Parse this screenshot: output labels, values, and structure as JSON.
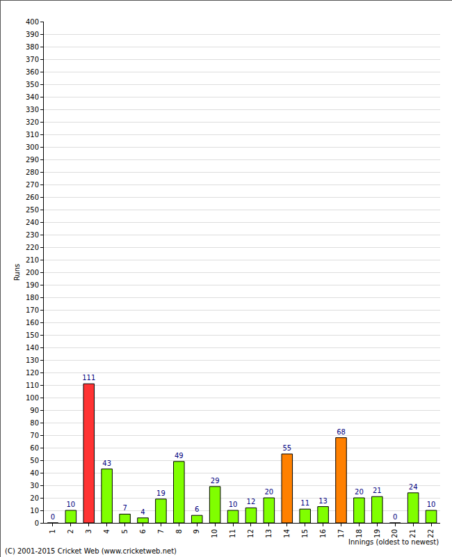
{
  "chart_data": {
    "type": "bar",
    "x_label": "Innings (oldest to newest)",
    "y_label": "Runs",
    "annotations": [
      "(C) 2001-2015 Cricket Web (www.cricketweb.net)"
    ],
    "categories": [
      "1",
      "2",
      "3",
      "4",
      "5",
      "6",
      "7",
      "8",
      "9",
      "10",
      "11",
      "12",
      "13",
      "14",
      "15",
      "16",
      "17",
      "18",
      "19",
      "20",
      "21",
      "22"
    ],
    "values": [
      0,
      10,
      111,
      43,
      7,
      4,
      19,
      49,
      6,
      29,
      10,
      12,
      20,
      55,
      11,
      13,
      68,
      20,
      21,
      0,
      24,
      10
    ],
    "colors": [
      "#80ff00",
      "#80ff00",
      "#ff3333",
      "#80ff00",
      "#80ff00",
      "#80ff00",
      "#80ff00",
      "#80ff00",
      "#80ff00",
      "#80ff00",
      "#80ff00",
      "#80ff00",
      "#80ff00",
      "#ff8000",
      "#80ff00",
      "#80ff00",
      "#ff8000",
      "#80ff00",
      "#80ff00",
      "#80ff00",
      "#80ff00",
      "#80ff00"
    ],
    "ylim": [
      0,
      400
    ],
    "yticks": [
      0,
      10,
      20,
      30,
      40,
      50,
      60,
      70,
      80,
      90,
      100,
      110,
      120,
      130,
      140,
      150,
      160,
      170,
      180,
      190,
      200,
      210,
      220,
      230,
      240,
      250,
      260,
      270,
      280,
      290,
      300,
      310,
      320,
      330,
      340,
      350,
      360,
      370,
      380,
      390,
      400
    ],
    "grid": true,
    "data_labels": true
  }
}
